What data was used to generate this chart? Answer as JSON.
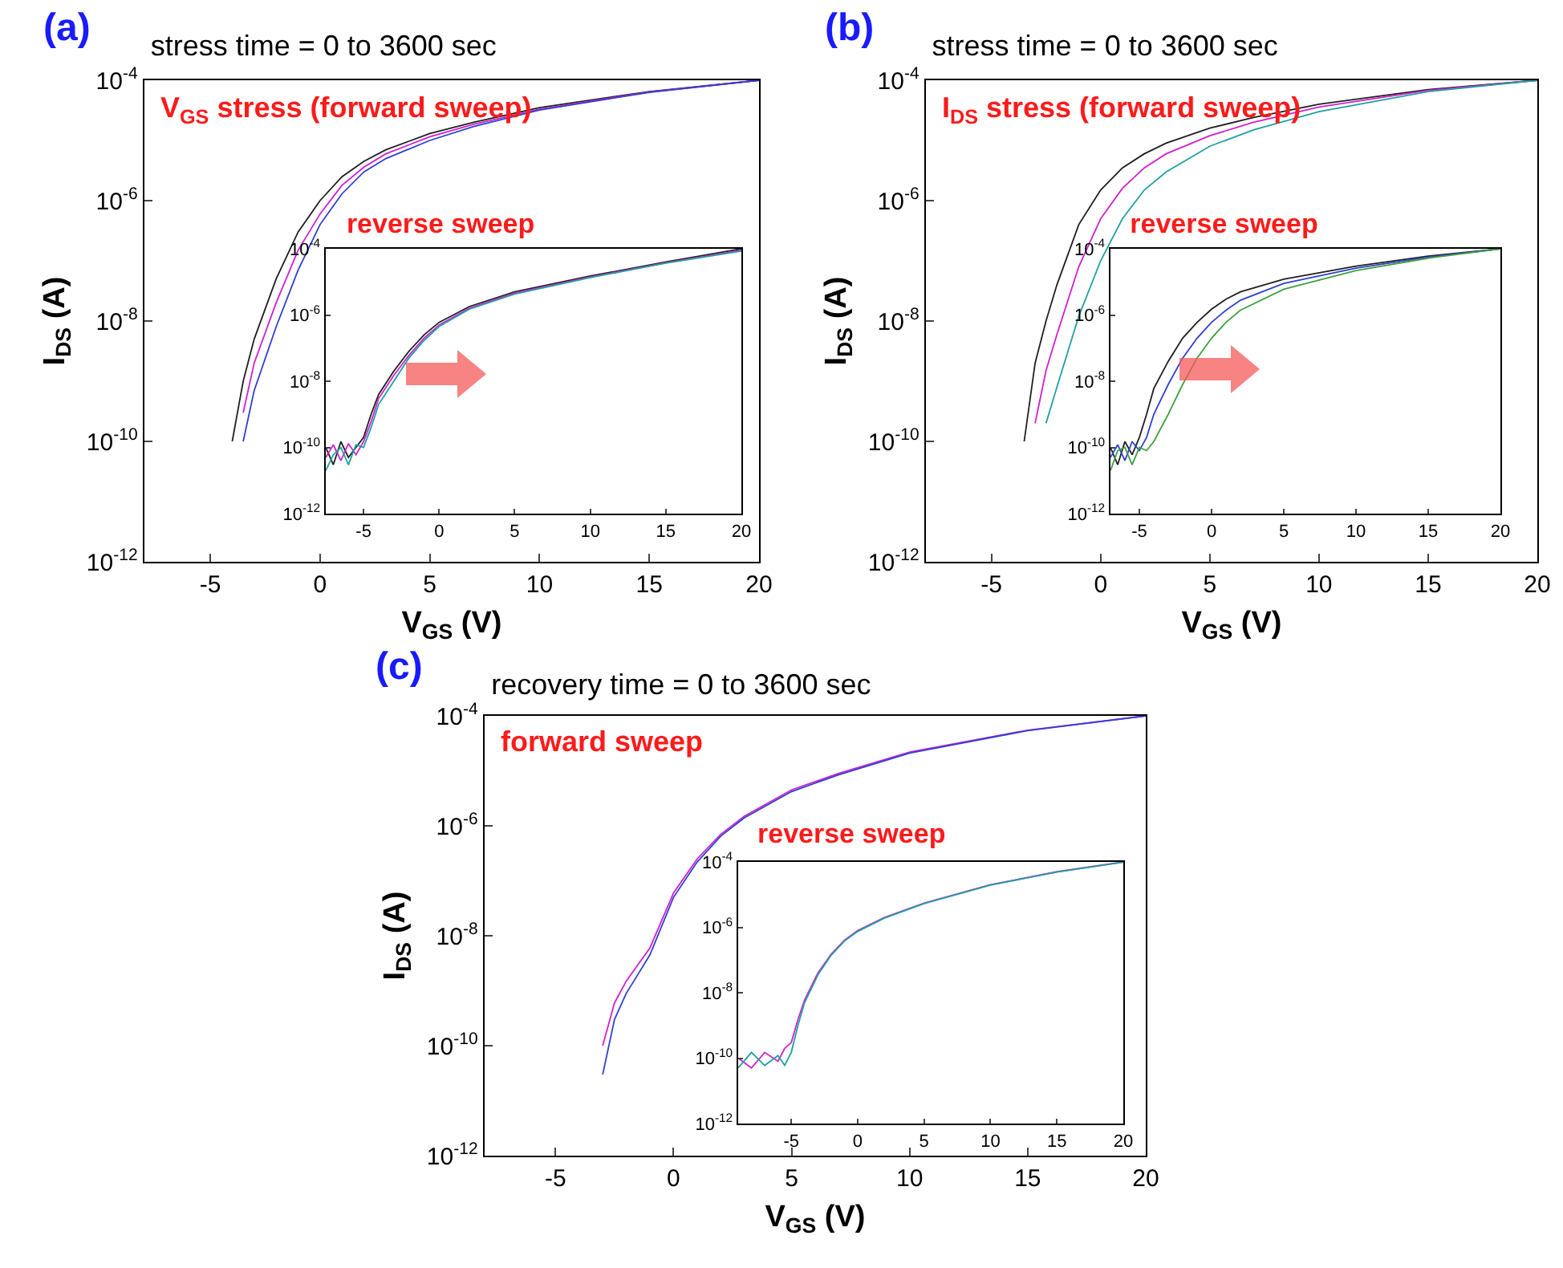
{
  "chart_data": [
    {
      "type": "line",
      "title": "stress time = 0 to 3600 sec",
      "xlabel": "V$_{GS}$ (V)",
      "ylabel": "I$_{DS}$ (A)",
      "annotations": [
        "(a)",
        "V$_{GS}$ stress (forward sweep)"
      ],
      "log": "y",
      "xlim": [
        -8,
        20
      ],
      "ylim": [
        1e-12,
        0.0001
      ],
      "xticks": [
        -5,
        0,
        5,
        10,
        15,
        20
      ],
      "yticks": [
        {
          "value": 1e-12,
          "label": "10$^{-12}$"
        },
        {
          "value": 1e-10,
          "label": "10$^{-10}$"
        },
        {
          "value": 1e-08,
          "label": "10$^{-8}$"
        },
        {
          "value": 1e-06,
          "label": "10$^{-6}$"
        },
        {
          "value": 0.0001,
          "label": "10$^{-4}$"
        }
      ],
      "x": [
        -4,
        -3.5,
        -3,
        -2,
        -1,
        0,
        1,
        2,
        3,
        5,
        7,
        10,
        15,
        20
      ],
      "series": [
        {
          "color": "#202020",
          "values": [
            1e-10,
            1e-09,
            5e-09,
            5e-08,
            3e-07,
            1e-06,
            2.5e-06,
            4.5e-06,
            7e-06,
            1.3e-05,
            2e-05,
            3.5e-05,
            6.5e-05,
            0.0001
          ]
        },
        {
          "color": "#d020d0",
          "values": [
            null,
            3e-10,
            2e-09,
            2e-08,
            1.5e-07,
            6e-07,
            1.8e-06,
            3.6e-06,
            6e-06,
            1.15e-05,
            1.85e-05,
            3.3e-05,
            6.4e-05,
            0.0001
          ]
        },
        {
          "color": "#3040d0",
          "values": [
            null,
            1e-10,
            7e-10,
            8e-09,
            7e-08,
            4e-07,
            1.3e-06,
            3e-06,
            5e-06,
            1e-05,
            1.7e-05,
            3.2e-05,
            6.3e-05,
            0.0001
          ]
        }
      ]
    },
    {
      "type": "line",
      "title": "reverse sweep",
      "log": "y",
      "xlim": [
        -7.5,
        20
      ],
      "ylim": [
        1e-12,
        0.0001
      ],
      "xticks": [
        -5,
        0,
        5,
        10,
        15,
        20
      ],
      "yticks": [
        {
          "value": 1e-12,
          "label": "10$^{-12}$"
        },
        {
          "value": 1e-10,
          "label": "10$^{-10}$"
        },
        {
          "value": 1e-08,
          "label": "10$^{-8}$"
        },
        {
          "value": 1e-06,
          "label": "10$^{-6}$"
        },
        {
          "value": 0.0001,
          "label": "10$^{-4}$"
        }
      ],
      "x": [
        -7.5,
        -7,
        -6.5,
        -6,
        -5.5,
        -5,
        -4.5,
        -4,
        -3,
        -2,
        -1,
        0,
        2,
        5,
        10,
        15,
        20
      ],
      "series": [
        {
          "color": "#202020",
          "values": [
            1e-10,
            3e-11,
            1.5e-10,
            5e-11,
            1e-10,
            2e-10,
            1e-09,
            4e-09,
            2e-08,
            8e-08,
            2.5e-07,
            6e-07,
            1.8e-06,
            5e-06,
            1.5e-05,
            4e-05,
            0.0001
          ]
        },
        {
          "color": "#d020d0",
          "values": [
            5e-11,
            1.2e-10,
            4e-11,
            1.3e-10,
            6e-11,
            1.5e-10,
            6e-10,
            3e-09,
            1.5e-08,
            6e-08,
            2e-07,
            5e-07,
            1.6e-06,
            4.6e-06,
            1.4e-05,
            3.8e-05,
            9e-05
          ]
        },
        {
          "color": "#20a0a0",
          "values": [
            2e-11,
            6e-11,
            1e-10,
            3e-11,
            1.2e-10,
            1e-10,
            4e-10,
            2e-09,
            1e-08,
            5e-08,
            1.7e-07,
            4.5e-07,
            1.5e-06,
            4.3e-06,
            1.35e-05,
            3.7e-05,
            8.5e-05
          ]
        }
      ]
    },
    {
      "type": "line",
      "title": "stress time = 0 to 3600 sec",
      "xlabel": "V$_{GS}$ (V)",
      "ylabel": "I$_{DS}$ (A)",
      "annotations": [
        "(b)",
        "I$_{DS}$ stress (forward sweep)"
      ],
      "log": "y",
      "xlim": [
        -8,
        20
      ],
      "ylim": [
        1e-12,
        0.0001
      ],
      "xticks": [
        -5,
        0,
        5,
        10,
        15,
        20
      ],
      "yticks": [
        {
          "value": 1e-12,
          "label": "10$^{-12}$"
        },
        {
          "value": 1e-10,
          "label": "10$^{-10}$"
        },
        {
          "value": 1e-08,
          "label": "10$^{-8}$"
        },
        {
          "value": 1e-06,
          "label": "10$^{-6}$"
        },
        {
          "value": 0.0001,
          "label": "10$^{-4}$"
        }
      ],
      "x": [
        -3.5,
        -3,
        -2.5,
        -2,
        -1,
        0,
        1,
        2,
        3,
        5,
        7,
        10,
        15,
        20
      ],
      "series": [
        {
          "color": "#202020",
          "values": [
            1e-10,
            2e-09,
            1e-08,
            4e-08,
            4e-07,
            1.5e-06,
            3.5e-06,
            6e-06,
            9e-06,
            1.6e-05,
            2.4e-05,
            4e-05,
            7e-05,
            0.0001
          ]
        },
        {
          "color": "#d020d0",
          "values": [
            null,
            2e-10,
            1.5e-09,
            6e-09,
            8e-08,
            5e-07,
            1.6e-06,
            3.5e-06,
            6e-06,
            1.2e-05,
            2e-05,
            3.6e-05,
            6.8e-05,
            0.0001
          ]
        },
        {
          "color": "#20a0a0",
          "values": [
            null,
            null,
            2e-10,
            8e-10,
            1.2e-08,
            1e-07,
            5e-07,
            1.5e-06,
            3e-06,
            8e-06,
            1.5e-05,
            3e-05,
            6.5e-05,
            0.0001
          ]
        }
      ]
    },
    {
      "type": "line",
      "title": "reverse sweep",
      "log": "y",
      "xlim": [
        -7,
        20
      ],
      "ylim": [
        1e-12,
        0.0001
      ],
      "xticks": [
        -5,
        0,
        5,
        10,
        15,
        20
      ],
      "yticks": [
        {
          "value": 1e-12,
          "label": "10$^{-12}$"
        },
        {
          "value": 1e-10,
          "label": "10$^{-10}$"
        },
        {
          "value": 1e-08,
          "label": "10$^{-8}$"
        },
        {
          "value": 1e-06,
          "label": "10$^{-6}$"
        },
        {
          "value": 0.0001,
          "label": "10$^{-4}$"
        }
      ],
      "x": [
        -7,
        -6.5,
        -6,
        -5.5,
        -5,
        -4.5,
        -4,
        -3,
        -2,
        -1,
        0,
        1,
        2,
        5,
        10,
        15,
        20
      ],
      "series": [
        {
          "color": "#202020",
          "values": [
            1e-10,
            3e-11,
            1.5e-10,
            6e-11,
            2e-10,
            1e-09,
            6e-09,
            4e-08,
            2e-07,
            6e-07,
            1.5e-06,
            3e-06,
            5e-06,
            1.2e-05,
            3e-05,
            6e-05,
            0.0001
          ]
        },
        {
          "color": "#3040d0",
          "values": [
            5e-11,
            1.2e-10,
            4e-11,
            1.5e-10,
            8e-11,
            2e-10,
            1e-09,
            8e-09,
            5e-08,
            2e-07,
            6e-07,
            1.4e-06,
            2.8e-06,
            9e-06,
            2.6e-05,
            5.6e-05,
            0.0001
          ]
        },
        {
          "color": "#40a040",
          "values": [
            2e-11,
            8e-11,
            1e-10,
            3e-11,
            1e-10,
            8e-11,
            1.5e-10,
            1e-09,
            8e-09,
            5e-08,
            2e-07,
            6e-07,
            1.4e-06,
            6e-06,
            2.2e-05,
            5.2e-05,
            0.0001
          ]
        }
      ]
    },
    {
      "type": "line",
      "title": "recovery time = 0 to 3600 sec",
      "xlabel": "V$_{GS}$ (V)",
      "ylabel": "I$_{DS}$ (A)",
      "annotations": [
        "(c)",
        "forward sweep"
      ],
      "log": "y",
      "xlim": [
        -8,
        20
      ],
      "ylim": [
        1e-12,
        0.0001
      ],
      "xticks": [
        -5,
        0,
        5,
        10,
        15,
        20
      ],
      "yticks": [
        {
          "value": 1e-12,
          "label": "10$^{-12}$"
        },
        {
          "value": 1e-10,
          "label": "10$^{-10}$"
        },
        {
          "value": 1e-08,
          "label": "10$^{-8}$"
        },
        {
          "value": 1e-06,
          "label": "10$^{-6}$"
        },
        {
          "value": 0.0001,
          "label": "10$^{-4}$"
        }
      ],
      "x": [
        -3,
        -2.5,
        -2,
        -1.5,
        -1,
        0,
        1,
        2,
        3,
        5,
        7,
        10,
        15,
        20
      ],
      "series": [
        {
          "color": "#d020d0",
          "values": [
            1e-10,
            6e-10,
            1.5e-09,
            3e-09,
            6e-09,
            6e-08,
            2.5e-07,
            7e-07,
            1.5e-06,
            4.5e-06,
            9e-06,
            2.2e-05,
            5.5e-05,
            0.0001
          ]
        },
        {
          "color": "#3040d0",
          "values": [
            3e-11,
            3e-10,
            9e-10,
            2e-09,
            4.5e-09,
            5e-08,
            2.2e-07,
            6.5e-07,
            1.4e-06,
            4.2e-06,
            8.5e-06,
            2.1e-05,
            5.4e-05,
            0.0001
          ]
        }
      ]
    },
    {
      "type": "line",
      "title": "reverse sweep",
      "log": "y",
      "xlim": [
        -9,
        20
      ],
      "ylim": [
        1e-12,
        0.0001
      ],
      "xticks": [
        -5,
        0,
        5,
        10,
        15,
        20
      ],
      "yticks": [
        {
          "value": 1e-12,
          "label": "10$^{-12}$"
        },
        {
          "value": 1e-10,
          "label": "10$^{-10}$"
        },
        {
          "value": 1e-08,
          "label": "10$^{-8}$"
        },
        {
          "value": 1e-06,
          "label": "10$^{-6}$"
        },
        {
          "value": 0.0001,
          "label": "10$^{-4}$"
        }
      ],
      "x": [
        -9,
        -8,
        -7,
        -6,
        -5.5,
        -5,
        -4.5,
        -4,
        -3,
        -2,
        -1,
        0,
        2,
        5,
        10,
        15,
        20
      ],
      "series": [
        {
          "color": "#d020d0",
          "values": [
            1e-10,
            5e-11,
            1.5e-10,
            8e-11,
            2e-10,
            3e-10,
            1.5e-09,
            6e-09,
            4e-08,
            1.5e-07,
            4e-07,
            8e-07,
            2e-06,
            5.5e-06,
            2e-05,
            5e-05,
            0.0001
          ]
        },
        {
          "color": "#20a0a0",
          "values": [
            5e-11,
            1.5e-10,
            6e-11,
            1.2e-10,
            6e-11,
            1.5e-10,
            1e-09,
            5e-09,
            3.5e-08,
            1.4e-07,
            3.8e-07,
            7.5e-07,
            1.9e-06,
            5.3e-06,
            1.95e-05,
            4.9e-05,
            9.8e-05
          ]
        }
      ]
    }
  ]
}
